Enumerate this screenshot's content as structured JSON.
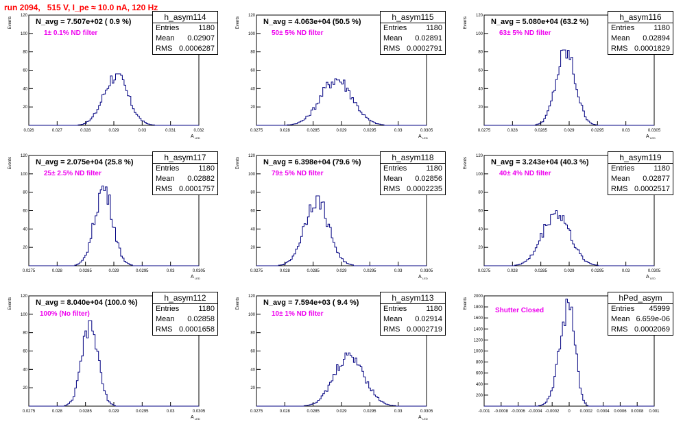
{
  "run_title": "run 2094,   515 V, I_pe ≈ 10.0 nA, 120 Hz",
  "chart_data": [
    {
      "type": "bar",
      "name": "h_asym114",
      "n_avg": "N_avg = 7.507e+02 ( 0.9 %)",
      "filter": "1± 0.1% ND filter",
      "stats": {
        "entries": "1180",
        "mean": "0.02907",
        "rms": "0.0006287"
      },
      "ylabel": "Events",
      "xlabel": "A",
      "xlabel_sub": "LED",
      "xlim": [
        0.026,
        0.032
      ],
      "ylim": [
        0,
        120
      ],
      "xticks": [
        "0.026",
        "0.027",
        "0.028",
        "0.029",
        "0.03",
        "0.031",
        "0.032"
      ],
      "yticks": [
        "20",
        "40",
        "60",
        "80",
        "100",
        "120"
      ],
      "peak_at": 0.02907,
      "peak_count": 56
    },
    {
      "type": "bar",
      "name": "h_asym115",
      "n_avg": "N_avg = 4.063e+04 (50.5 %)",
      "filter": "50± 5% ND filter",
      "stats": {
        "entries": "1180",
        "mean": "0.02891",
        "rms": "0.0002791"
      },
      "ylabel": "Events",
      "xlabel": "A",
      "xlabel_sub": "LED",
      "xlim": [
        0.0275,
        0.0305
      ],
      "ylim": [
        0,
        120
      ],
      "xticks": [
        "0.0275",
        "0.028",
        "0.0285",
        "0.029",
        "0.0295",
        "0.03",
        "0.0305"
      ],
      "yticks": [
        "20",
        "40",
        "60",
        "80",
        "100",
        "120"
      ],
      "peak_at": 0.02891,
      "peak_count": 52
    },
    {
      "type": "bar",
      "name": "h_asym116",
      "n_avg": "N_avg = 5.080e+04 (63.2 %)",
      "filter": "63± 5% ND filter",
      "stats": {
        "entries": "1180",
        "mean": "0.02894",
        "rms": "0.0001829"
      },
      "ylabel": "Events",
      "xlabel": "A",
      "xlabel_sub": "LED",
      "xlim": [
        0.0275,
        0.0305
      ],
      "ylim": [
        0,
        120
      ],
      "xticks": [
        "0.0275",
        "0.028",
        "0.0285",
        "0.029",
        "0.0295",
        "0.03",
        "0.0305"
      ],
      "yticks": [
        "20",
        "40",
        "60",
        "80",
        "100",
        "120"
      ],
      "peak_at": 0.02894,
      "peak_count": 82
    },
    {
      "type": "bar",
      "name": "h_asym117",
      "n_avg": "N_avg = 2.075e+04 (25.8 %)",
      "filter": "25± 2.5% ND filter",
      "stats": {
        "entries": "1180",
        "mean": "0.02882",
        "rms": "0.0001757"
      },
      "ylabel": "Events",
      "xlabel": "A",
      "xlabel_sub": "LED",
      "xlim": [
        0.0275,
        0.0305
      ],
      "ylim": [
        0,
        120
      ],
      "xticks": [
        "0.0275",
        "0.028",
        "0.0285",
        "0.029",
        "0.0295",
        "0.03",
        "0.0305"
      ],
      "yticks": [
        "20",
        "40",
        "60",
        "80",
        "100",
        "120"
      ],
      "peak_at": 0.02882,
      "peak_count": 87
    },
    {
      "type": "bar",
      "name": "h_asym118",
      "n_avg": "N_avg = 6.398e+04 (79.6 %)",
      "filter": "79± 5% ND filter",
      "stats": {
        "entries": "1180",
        "mean": "0.02856",
        "rms": "0.0002235"
      },
      "ylabel": "Events",
      "xlabel": "A",
      "xlabel_sub": "LED",
      "xlim": [
        0.0275,
        0.0305
      ],
      "ylim": [
        0,
        120
      ],
      "xticks": [
        "0.0275",
        "0.028",
        "0.0285",
        "0.029",
        "0.0295",
        "0.03",
        "0.0305"
      ],
      "yticks": [
        "20",
        "40",
        "60",
        "80",
        "100",
        "120"
      ],
      "peak_at": 0.02856,
      "peak_count": 76
    },
    {
      "type": "bar",
      "name": "h_asym119",
      "n_avg": "N_avg = 3.243e+04 (40.3 %)",
      "filter": "40± 4% ND filter",
      "stats": {
        "entries": "1180",
        "mean": "0.02877",
        "rms": "0.0002517"
      },
      "ylabel": "Events",
      "xlabel": "A",
      "xlabel_sub": "LED",
      "xlim": [
        0.0275,
        0.0305
      ],
      "ylim": [
        0,
        120
      ],
      "xticks": [
        "0.0275",
        "0.028",
        "0.0285",
        "0.029",
        "0.0295",
        "0.03",
        "0.0305"
      ],
      "yticks": [
        "20",
        "40",
        "60",
        "80",
        "100",
        "120"
      ],
      "peak_at": 0.02877,
      "peak_count": 60
    },
    {
      "type": "bar",
      "name": "h_asym112",
      "n_avg": "N_avg = 8.040e+04 (100.0 %)",
      "filter": "100% (No filter)",
      "stats": {
        "entries": "1180",
        "mean": "0.02858",
        "rms": "0.0001658"
      },
      "ylabel": "Events",
      "xlabel": "A",
      "xlabel_sub": "LED",
      "xlim": [
        0.0275,
        0.0305
      ],
      "ylim": [
        0,
        120
      ],
      "xticks": [
        "0.0275",
        "0.028",
        "0.0285",
        "0.029",
        "0.0295",
        "0.03",
        "0.0305"
      ],
      "yticks": [
        "20",
        "40",
        "60",
        "80",
        "100",
        "120"
      ],
      "peak_at": 0.02858,
      "peak_count": 93
    },
    {
      "type": "bar",
      "name": "h_asym113",
      "n_avg": "N_avg = 7.594e+03 ( 9.4 %)",
      "filter": "10± 1% ND filter",
      "stats": {
        "entries": "1180",
        "mean": "0.02914",
        "rms": "0.0002719"
      },
      "ylabel": "Events",
      "xlabel": "A",
      "xlabel_sub": "LED",
      "xlim": [
        0.0275,
        0.0305
      ],
      "ylim": [
        0,
        120
      ],
      "xticks": [
        "0.0275",
        "0.028",
        "0.0285",
        "0.029",
        "0.0295",
        "0.03",
        "0.0305"
      ],
      "yticks": [
        "20",
        "40",
        "60",
        "80",
        "100",
        "120"
      ],
      "peak_at": 0.02914,
      "peak_count": 58
    },
    {
      "type": "bar",
      "name": "hPed_asym",
      "n_avg": "",
      "filter": "Shutter Closed",
      "stats": {
        "entries": "45999",
        "mean": "6.659e-06",
        "rms": "0.0002069"
      },
      "ylabel": "Events",
      "xlabel": "",
      "xlabel_sub": "",
      "xlim": [
        -0.001,
        0.001
      ],
      "ylim": [
        0,
        2000
      ],
      "xticks": [
        "-0.001",
        "-0.0008",
        "-0.0006",
        "-0.0004",
        "-0.0002",
        "0",
        "0.0002",
        "0.0004",
        "0.0006",
        "0.0008",
        "0.001"
      ],
      "yticks": [
        "200",
        "400",
        "600",
        "800",
        "1000",
        "1200",
        "1400",
        "1600",
        "1800",
        "2000"
      ],
      "peak_at": 1e-05,
      "peak_count": 1940
    }
  ]
}
